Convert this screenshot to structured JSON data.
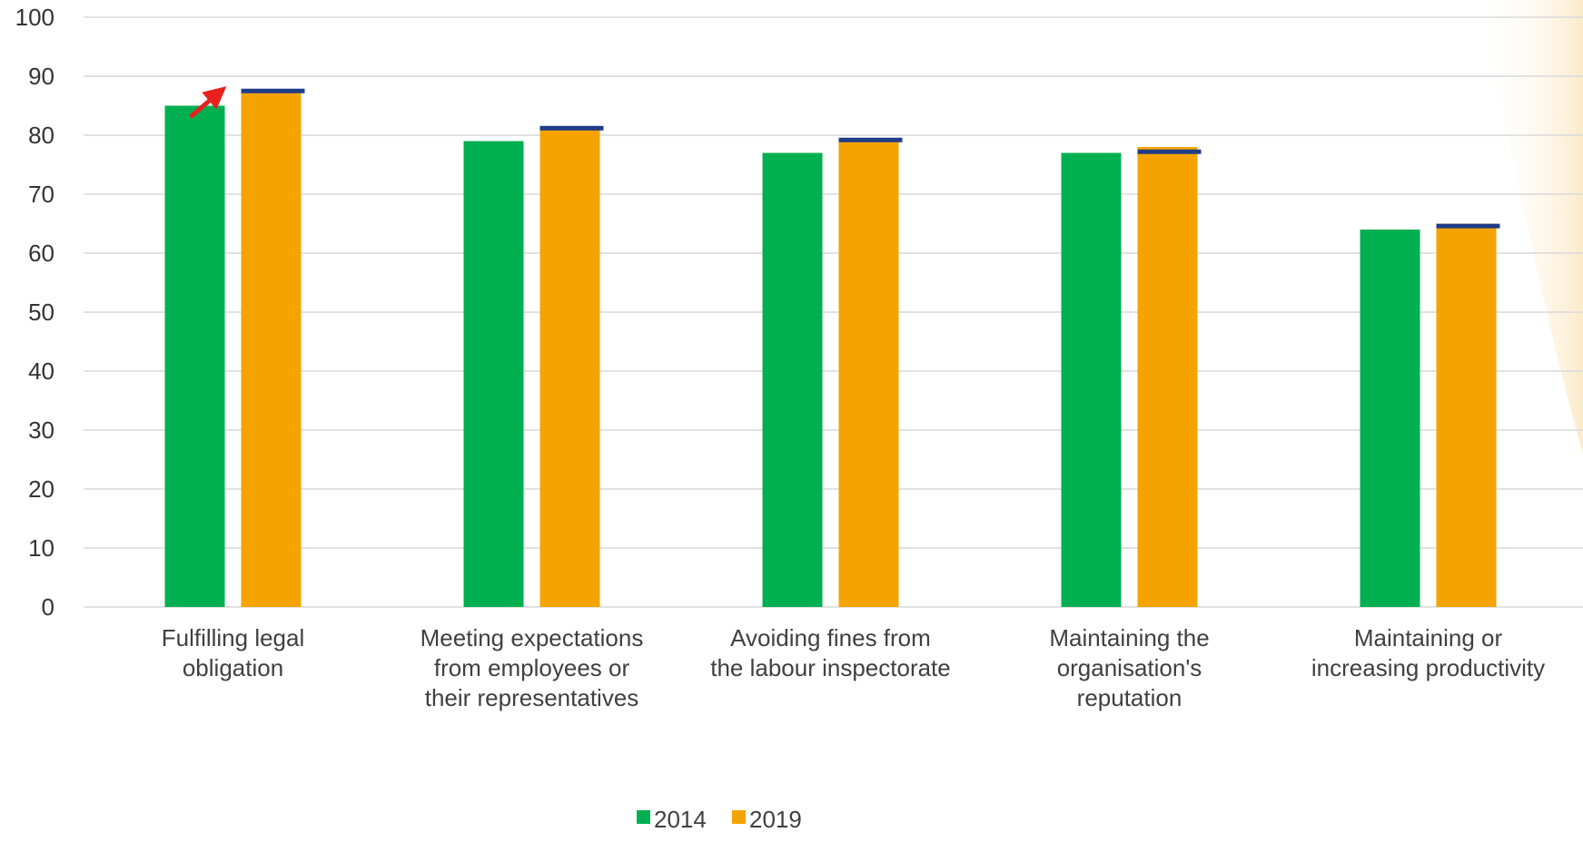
{
  "chart_data": {
    "type": "bar",
    "categories": [
      [
        "Fulfilling legal",
        "obligation"
      ],
      [
        "Meeting expectations",
        "from employees or",
        "their representatives"
      ],
      [
        "Avoiding fines from",
        "the labour inspectorate"
      ],
      [
        "Maintaining the",
        "organisation's",
        "reputation"
      ],
      [
        "Maintaining or",
        "increasing productivity"
      ]
    ],
    "series": [
      {
        "name": "2014",
        "color": "#00b050",
        "values": [
          85,
          79,
          77,
          77,
          64
        ]
      },
      {
        "name": "2019",
        "color": "#f5a300",
        "values": [
          87.5,
          81,
          79,
          78,
          65
        ]
      }
    ],
    "markers": {
      "color": "#1f3c88",
      "values": [
        87.5,
        81.2,
        79.2,
        77.2,
        64.6
      ]
    },
    "yticks": [
      0,
      10,
      20,
      30,
      40,
      50,
      60,
      70,
      80,
      90,
      100
    ],
    "ylim": [
      0,
      100
    ],
    "grid": true,
    "legend_position": "bottom",
    "annotation": {
      "type": "arrow",
      "color": "#e8211f",
      "category_index": 0
    },
    "gridline_color": "#d9d9d9",
    "background_accent": "#fdf3df"
  }
}
